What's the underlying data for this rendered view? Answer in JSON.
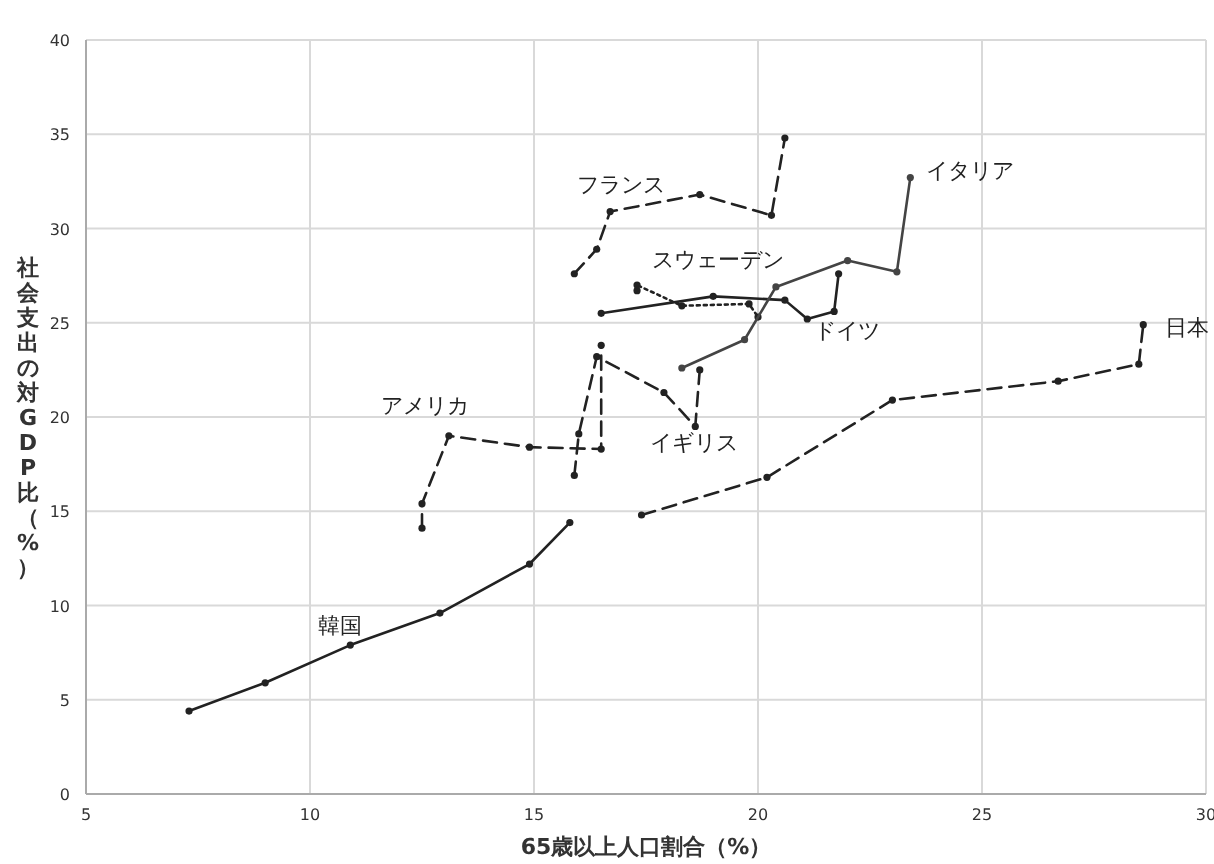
{
  "chart_data": {
    "type": "line",
    "xlabel": "65歳以上人口割合（%）",
    "ylabel": "社会支出の対GDP比（%）",
    "xlim": [
      5,
      30
    ],
    "xticks": [
      5,
      10,
      15,
      20,
      25,
      30
    ],
    "ylim": [
      0,
      40
    ],
    "yticks": [
      0,
      5,
      10,
      15,
      20,
      25,
      30,
      35,
      40
    ],
    "grid": true,
    "marker": "circle",
    "legend": false,
    "series": [
      {
        "name": "韓国",
        "color": "#222222",
        "line_style": "solid",
        "x": [
          7.3,
          9.0,
          10.9,
          12.9,
          14.9,
          15.8
        ],
        "values": [
          4.4,
          5.9,
          7.9,
          9.6,
          12.2,
          14.4
        ]
      },
      {
        "name": "アメリカ",
        "color": "#222222",
        "line_style": "dashed",
        "x": [
          12.5,
          12.5,
          13.1,
          14.9,
          16.5,
          16.5
        ],
        "values": [
          14.1,
          15.4,
          19.0,
          18.4,
          18.3,
          23.8
        ]
      },
      {
        "name": "イギリス",
        "color": "#222222",
        "line_style": "dashed",
        "x": [
          15.9,
          16.0,
          16.4,
          17.9,
          18.6,
          18.7
        ],
        "values": [
          16.9,
          19.1,
          23.2,
          21.3,
          19.5,
          22.5
        ]
      },
      {
        "name": "スウェーデン",
        "color": "#222222",
        "line_style": "dotted",
        "x": [
          17.3,
          17.3,
          18.3,
          19.8,
          20.0
        ],
        "values": [
          26.7,
          27.0,
          25.9,
          26.0,
          25.3
        ]
      },
      {
        "name": "ドイツ",
        "color": "#222222",
        "line_style": "solid",
        "x": [
          16.5,
          19.0,
          20.6,
          21.1,
          21.7,
          21.8
        ],
        "values": [
          25.5,
          26.4,
          26.2,
          25.2,
          25.6,
          27.6
        ]
      },
      {
        "name": "イタリア",
        "color": "#444444",
        "line_style": "solid",
        "x": [
          18.3,
          19.7,
          20.4,
          22.0,
          23.1,
          23.4
        ],
        "values": [
          22.6,
          24.1,
          26.9,
          28.3,
          27.7,
          32.7
        ]
      },
      {
        "name": "フランス",
        "color": "#222222",
        "line_style": "dashed",
        "x": [
          15.9,
          16.4,
          16.7,
          18.7,
          20.3,
          20.6
        ],
        "values": [
          27.6,
          28.9,
          30.9,
          31.8,
          30.7,
          34.8
        ]
      },
      {
        "name": "日本",
        "color": "#222222",
        "line_style": "dashed",
        "x": [
          17.4,
          20.2,
          23.0,
          26.7,
          28.5,
          28.6
        ],
        "values": [
          14.8,
          16.8,
          20.9,
          21.9,
          22.8,
          24.9
        ]
      }
    ]
  }
}
